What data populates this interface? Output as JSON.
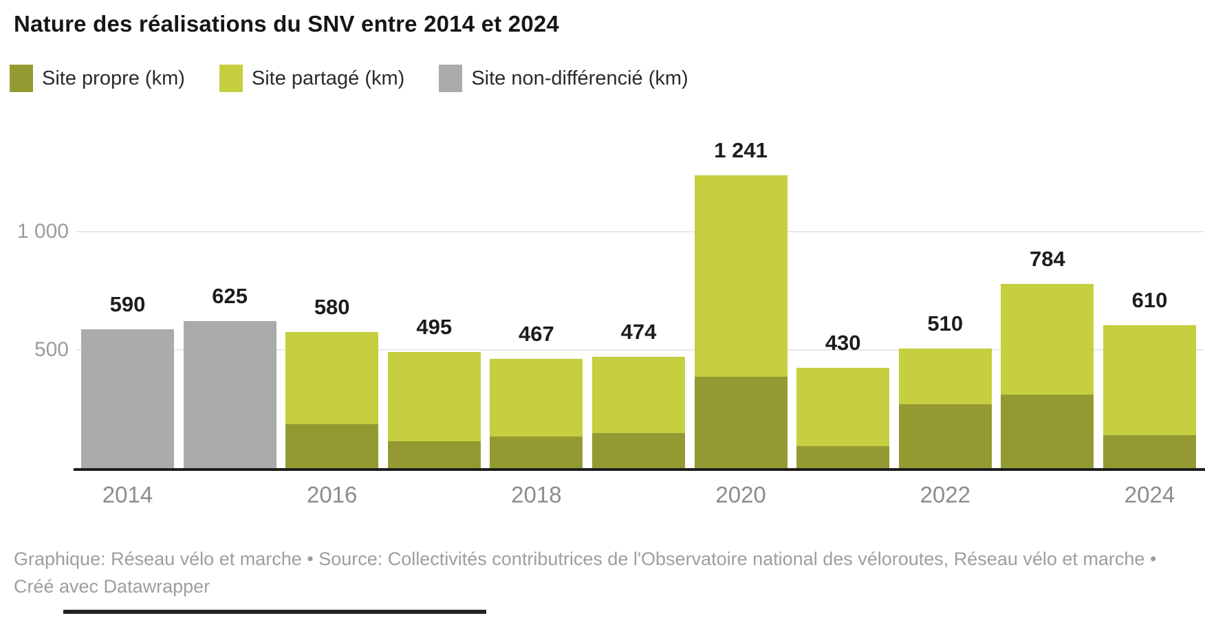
{
  "header": {
    "title": "Nature des réalisations du SNV entre 2014 et 2024"
  },
  "legend": {
    "items": [
      {
        "key": "site-propre",
        "label": "Site propre (km)",
        "color": "#949a32"
      },
      {
        "key": "site-partage",
        "label": "Site partagé (km)",
        "color": "#c6cf3f"
      },
      {
        "key": "site-non-differencie",
        "label": "Site non-différencié (km)",
        "color": "#ababab"
      }
    ]
  },
  "footer": {
    "attribution": "Graphique: Réseau vélo et marche • Source: Collectivités contributrices de l'Observatoire national des véloroutes, Réseau vélo et marche • Créé avec Datawrapper"
  },
  "chart_data": {
    "type": "bar",
    "stacked": true,
    "title": "Nature des réalisations du SNV entre 2014 et 2024",
    "xlabel": "",
    "ylabel": "",
    "categories": [
      "2014",
      "2015",
      "2016",
      "2017",
      "2018",
      "2019",
      "2020",
      "2021",
      "2022",
      "2023",
      "2024"
    ],
    "series": [
      {
        "name": "Site propre (km)",
        "key": "site-propre",
        "color": "#949a32",
        "values": [
          0,
          0,
          190,
          120,
          140,
          155,
          390,
          100,
          275,
          315,
          145
        ]
      },
      {
        "name": "Site partagé (km)",
        "key": "site-partage",
        "color": "#c6cf3f",
        "values": [
          0,
          0,
          390,
          375,
          327,
          319,
          851,
          330,
          235,
          469,
          465
        ]
      },
      {
        "name": "Site non-différencié (km)",
        "key": "site-non-differencie",
        "color": "#ababab",
        "values": [
          590,
          625,
          0,
          0,
          0,
          0,
          0,
          0,
          0,
          0,
          0
        ]
      }
    ],
    "totals": [
      590,
      625,
      580,
      495,
      467,
      474,
      1241,
      430,
      510,
      784,
      610
    ],
    "total_labels": [
      "590",
      "625",
      "580",
      "495",
      "467",
      "474",
      "1 241",
      "430",
      "510",
      "784",
      "610"
    ],
    "x_tick_labels": [
      "2014",
      "",
      "2016",
      "",
      "2018",
      "",
      "2020",
      "",
      "2022",
      "",
      "2024"
    ],
    "y_ticks": [
      {
        "value": 500,
        "label": "500"
      },
      {
        "value": 1000,
        "label": "1 000"
      }
    ],
    "ylim": [
      0,
      1516
    ],
    "grid": "horizontal",
    "legend_position": "top"
  }
}
